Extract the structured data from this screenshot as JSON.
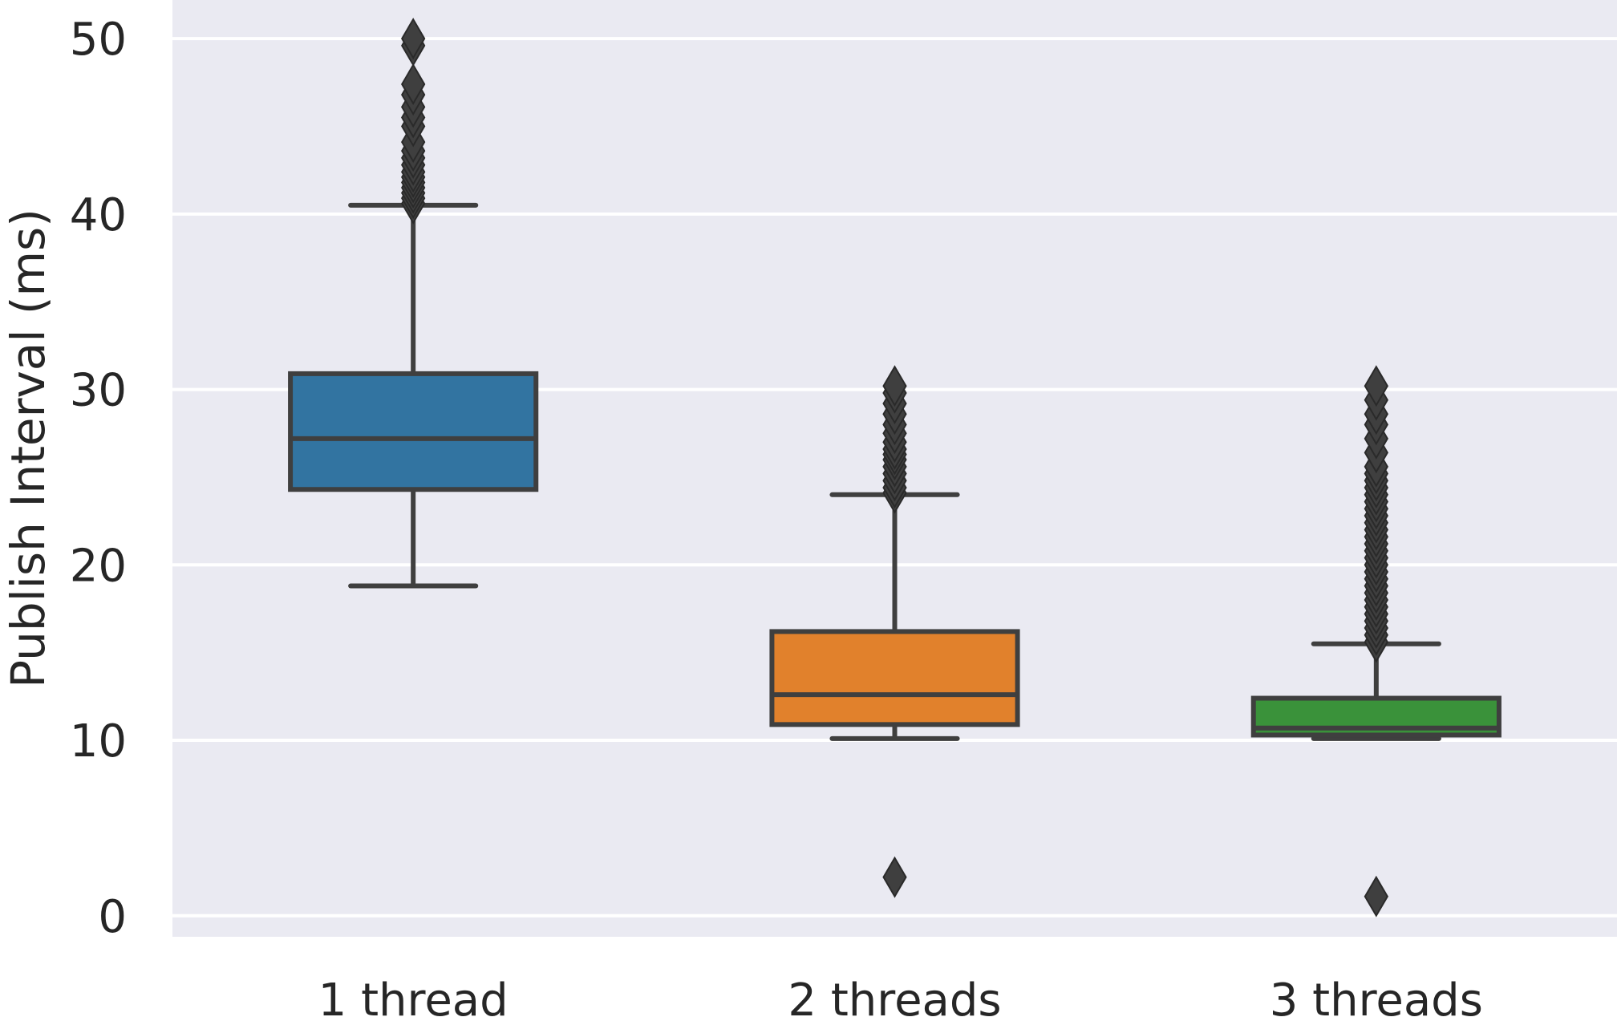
{
  "chart_data": {
    "type": "box",
    "title": "",
    "xlabel": "",
    "ylabel": "Publish Interval (ms)",
    "ylim": [
      -1.2,
      52.2
    ],
    "yticks": [
      0,
      10,
      20,
      30,
      40,
      50
    ],
    "grid": true,
    "colors": {
      "background": "#EAEAF2",
      "grid": "#FFFFFF",
      "edge": "#3F3F3F"
    },
    "categories": [
      "1 thread",
      "2 threads",
      "3 threads"
    ],
    "series": [
      {
        "category": "1 thread",
        "color": "#3274A1",
        "whisker_low": 18.8,
        "q1": 24.3,
        "median": 27.2,
        "q3": 30.9,
        "whisker_high": 40.5,
        "outliers": [
          40.6,
          40.9,
          41.2,
          41.5,
          41.8,
          42.1,
          42.4,
          42.8,
          43.2,
          43.6,
          44.1,
          45.0,
          45.5,
          46.1,
          46.8,
          47.4,
          49.6,
          50.0
        ]
      },
      {
        "category": "2 threads",
        "color": "#E1812C",
        "whisker_low": 10.1,
        "q1": 10.9,
        "median": 12.6,
        "q3": 16.2,
        "whisker_high": 24.0,
        "outliers": [
          2.2,
          24.1,
          24.4,
          24.8,
          25.2,
          25.6,
          26.0,
          26.3,
          26.6,
          27.0,
          27.5,
          28.0,
          28.6,
          29.2,
          29.8,
          30.2
        ]
      },
      {
        "category": "3 threads",
        "color": "#3A923A",
        "whisker_low": 10.1,
        "q1": 10.3,
        "median": 10.7,
        "q3": 12.4,
        "whisker_high": 15.5,
        "outliers": [
          1.1,
          15.6,
          16.0,
          16.4,
          16.8,
          17.2,
          17.6,
          18.0,
          18.4,
          18.8,
          19.2,
          19.6,
          20.0,
          20.4,
          20.8,
          21.2,
          21.6,
          22.0,
          22.4,
          22.8,
          23.2,
          23.6,
          24.0,
          24.4,
          24.8,
          25.2,
          25.6,
          26.4,
          27.2,
          28.0,
          28.6,
          29.4,
          30.2
        ]
      }
    ]
  }
}
